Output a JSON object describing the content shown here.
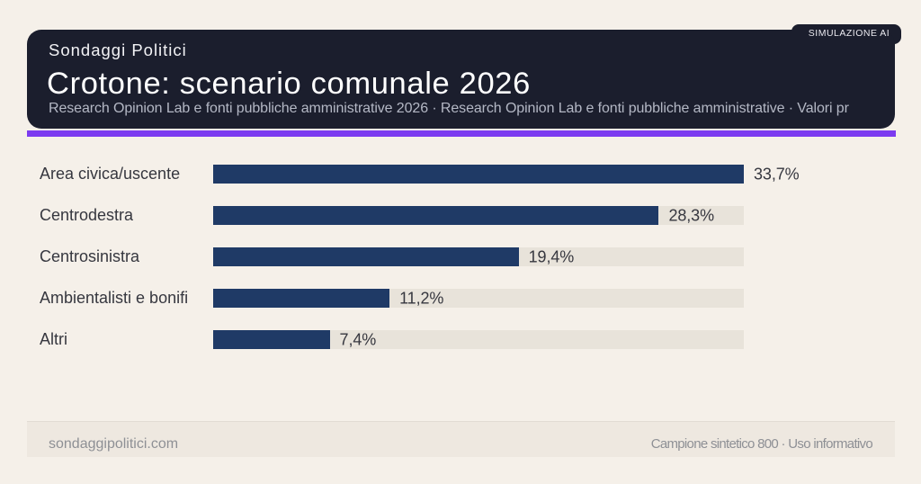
{
  "header": {
    "brand": "Sondaggi Politici",
    "title": "Crotone: scenario comunale 2026",
    "subtitle": "Research Opinion Lab e fonti pubbliche amministrative 2026 · Research Opinion Lab e fonti pubbliche amministrative · Valori pr",
    "badge": "SIMULAZIONE AI"
  },
  "chart_data": {
    "type": "bar",
    "orientation": "horizontal",
    "categories": [
      "Area civica/uscente",
      "Centrodestra",
      "Centrosinistra",
      "Ambientalisti e bonifi",
      "Altri"
    ],
    "values": [
      33.7,
      28.3,
      19.4,
      11.2,
      7.4
    ],
    "value_labels": [
      "33,7%",
      "28,3%",
      "19,4%",
      "11,2%",
      "7,4%"
    ],
    "max_value": 33.7,
    "xlim": [
      0,
      33.7
    ],
    "grid": false,
    "legend": false
  },
  "footer": {
    "left": "sondaggipolitici.com",
    "right": "Campione sintetico 800 · Uso informativo"
  },
  "colors": {
    "page_bg": "#f5f0e9",
    "card_bg": "#1b1e2d",
    "accent": "#7c3bf0",
    "bar": "#1f3a66",
    "track": "#e8e3da"
  }
}
